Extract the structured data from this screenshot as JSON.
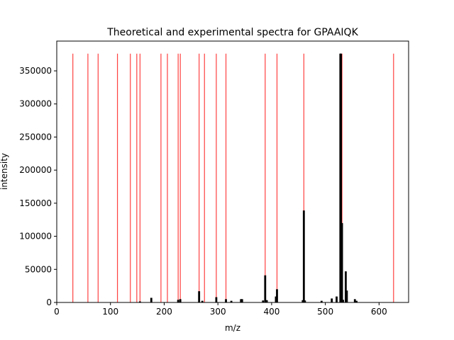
{
  "chart_data": {
    "type": "bar",
    "title": "Theoretical and experimental spectra for GPAAIQK",
    "xlabel": "m/z",
    "ylabel": "intensity",
    "xlim": [
      0,
      655
    ],
    "ylim": [
      0,
      395000
    ],
    "xticks": [
      0,
      100,
      200,
      300,
      400,
      500,
      600
    ],
    "yticks": [
      0,
      50000,
      100000,
      150000,
      200000,
      250000,
      300000,
      350000
    ],
    "grid": false,
    "colors": {
      "theoretical": "#ff0000",
      "experimental": "#000000"
    },
    "theoretical": {
      "intensity": 376000,
      "mz": [
        30,
        58,
        77,
        113,
        137,
        149,
        155,
        194,
        206,
        226,
        230,
        265,
        275,
        297,
        315,
        388,
        410,
        460,
        528,
        531,
        627
      ]
    },
    "experimental": {
      "mz": [
        155,
        176,
        226,
        230,
        265,
        271,
        297,
        315,
        325,
        343,
        345,
        384,
        388,
        391,
        408,
        410,
        458,
        460,
        462,
        493,
        512,
        521,
        528,
        529,
        531,
        533,
        538,
        540,
        555,
        558
      ],
      "intensity": [
        1500,
        7000,
        4000,
        5000,
        17000,
        2500,
        8000,
        5000,
        2500,
        5000,
        5000,
        3000,
        41000,
        3500,
        9000,
        20000,
        3500,
        139000,
        3000,
        2500,
        6000,
        9000,
        376000,
        376000,
        120000,
        4000,
        47000,
        18000,
        5000,
        2500
      ]
    }
  }
}
